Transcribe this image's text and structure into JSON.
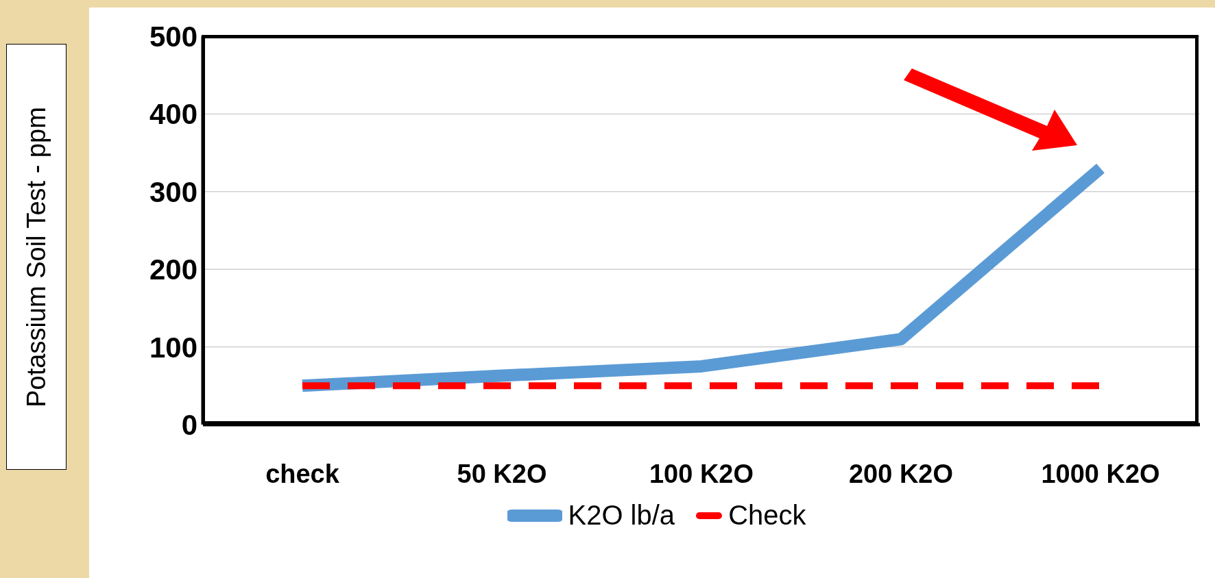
{
  "chart_data": {
    "type": "line",
    "ylabel": "Potassium Soil Test - ppm",
    "categories": [
      "check",
      "50  K2O",
      "100 K2O",
      "200 K2O",
      "1000 K2O"
    ],
    "series": [
      {
        "name": "K2O lb/a",
        "color": "#5b9bd5",
        "values": [
          50,
          63,
          75,
          110,
          330
        ],
        "line_style": "solid"
      },
      {
        "name": "Check",
        "color": "#ff0000",
        "values": [
          50,
          50,
          50,
          50,
          50
        ],
        "line_style": "dashed"
      }
    ],
    "ylim": [
      0,
      500
    ],
    "yticks": [
      0,
      100,
      200,
      300,
      400,
      500
    ],
    "grid": "y",
    "legend": "bottom",
    "marker": "none"
  }
}
